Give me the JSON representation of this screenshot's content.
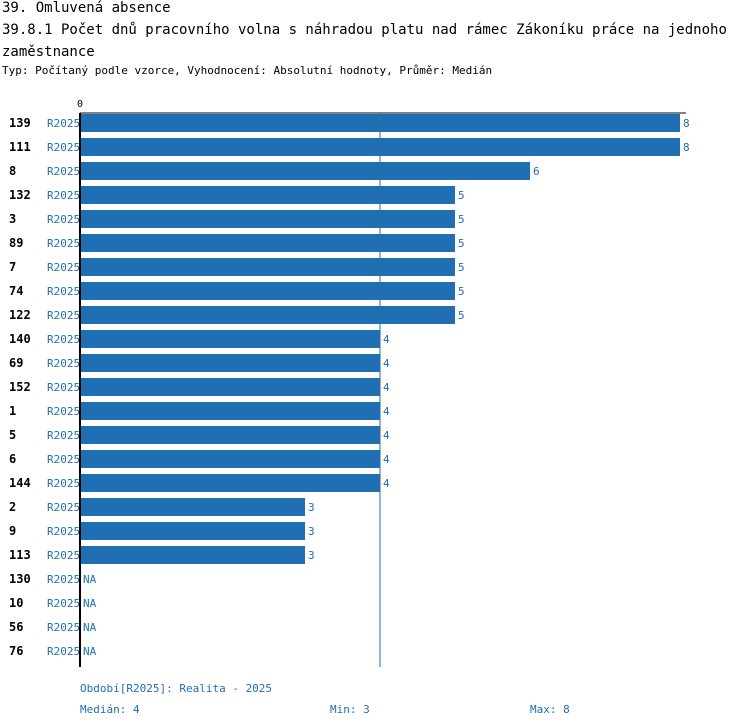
{
  "title": "39. Omluvená absence",
  "subtitle": "39.8.1 Počet dnů pracovního volna s náhradou platu nad rámec Zákoníku práce na jednoho zaměstnance",
  "type_line": "Typ: Počítaný podle vzorce, Vyhodnocení: Absolutní hodnoty, Průměr: Medián",
  "colors": {
    "bar": "#1f6fb2",
    "label": "#1f6fb2",
    "axis": "#000000",
    "median_line": "#1f6fb2"
  },
  "chart_data": {
    "type": "bar",
    "orientation": "horizontal",
    "xlim": [
      0,
      8
    ],
    "axis_zero_label": "0",
    "median": 4,
    "categories": [
      "139",
      "111",
      "8",
      "132",
      "3",
      "89",
      "7",
      "74",
      "122",
      "140",
      "69",
      "152",
      "1",
      "5",
      "6",
      "144",
      "2",
      "9",
      "113",
      "130",
      "10",
      "56",
      "76"
    ],
    "series_labels": [
      "R2025",
      "R2025",
      "R2025",
      "R2025",
      "R2025",
      "R2025",
      "R2025",
      "R2025",
      "R2025",
      "R2025",
      "R2025",
      "R2025",
      "R2025",
      "R2025",
      "R2025",
      "R2025",
      "R2025",
      "R2025",
      "R2025",
      "R2025",
      "R2025",
      "R2025",
      "R2025"
    ],
    "values": [
      8,
      8,
      6,
      5,
      5,
      5,
      5,
      5,
      5,
      4,
      4,
      4,
      4,
      4,
      4,
      4,
      3,
      3,
      3,
      null,
      null,
      null,
      null
    ],
    "value_labels": [
      "8",
      "8",
      "6",
      "5",
      "5",
      "5",
      "5",
      "5",
      "5",
      "4",
      "4",
      "4",
      "4",
      "4",
      "4",
      "4",
      "3",
      "3",
      "3",
      "NA",
      "NA",
      "NA",
      "NA"
    ]
  },
  "footer": {
    "period": "Období[R2025]: Realita - 2025",
    "median": "Medián: 4",
    "min": "Min: 3",
    "max": "Max: 8"
  }
}
